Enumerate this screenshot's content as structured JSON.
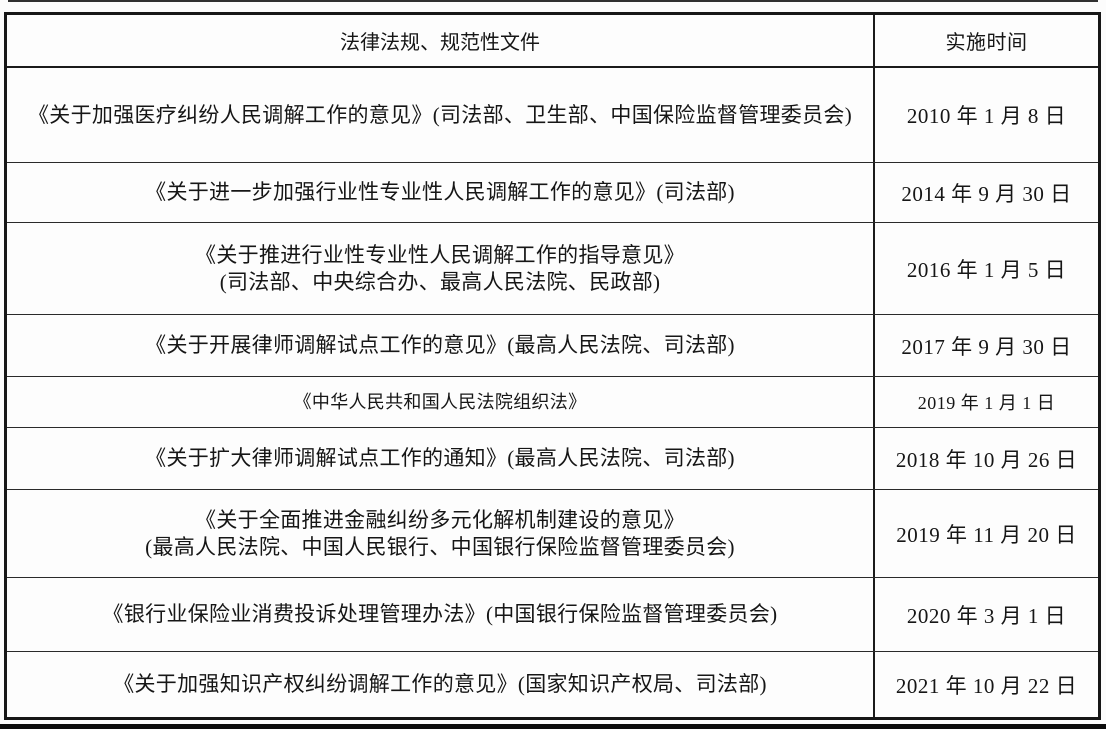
{
  "colors": {
    "ink": "#161616",
    "border": "#171717",
    "page_background": "#fcfcfc",
    "scan_edge": "#0c0c0c"
  },
  "table": {
    "header": {
      "documents_label": "法律法规、规范性文件",
      "date_label": "实施时间"
    },
    "rows": [
      {
        "lines": [
          "《关于加强医疗纠纷人民调解工作的意见》(司法部、卫生部、中国保险监督管理委员会)"
        ],
        "date": "2010 年 1 月 8 日"
      },
      {
        "lines": [
          "《关于进一步加强行业性专业性人民调解工作的意见》(司法部)"
        ],
        "date": "2014 年 9 月 30 日"
      },
      {
        "lines": [
          "《关于推进行业性专业性人民调解工作的指导意见》",
          "(司法部、中央综合办、最高人民法院、民政部)"
        ],
        "date": "2016 年 1 月 5 日"
      },
      {
        "lines": [
          "《关于开展律师调解试点工作的意见》(最高人民法院、司法部)"
        ],
        "date": "2017 年 9 月 30 日"
      },
      {
        "lines": [
          "《中华人民共和国人民法院组织法》"
        ],
        "date": "2019 年 1 月 1 日",
        "small": true
      },
      {
        "lines": [
          "《关于扩大律师调解试点工作的通知》(最高人民法院、司法部)"
        ],
        "date": "2018 年 10 月 26 日"
      },
      {
        "lines": [
          "《关于全面推进金融纠纷多元化解机制建设的意见》",
          "(最高人民法院、中国人民银行、中国银行保险监督管理委员会)"
        ],
        "date": "2019 年 11 月 20 日"
      },
      {
        "lines": [
          "《银行业保险业消费投诉处理管理办法》(中国银行保险监督管理委员会)"
        ],
        "date": "2020 年 3 月 1 日"
      },
      {
        "lines": [
          "《关于加强知识产权纠纷调解工作的意见》(国家知识产权局、司法部)"
        ],
        "date": "2021 年 10 月 22 日"
      }
    ]
  }
}
